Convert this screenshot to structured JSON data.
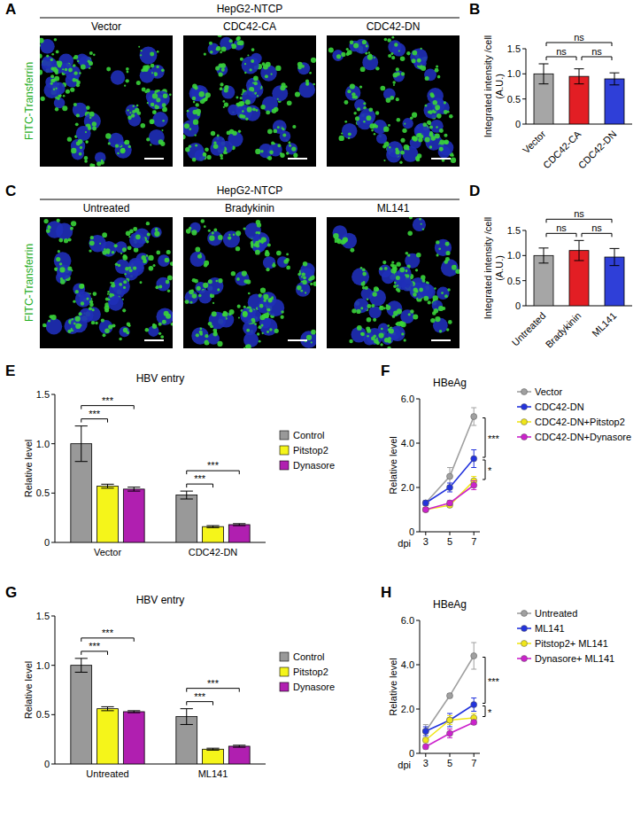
{
  "image_panels": [
    {
      "panel": "A",
      "header": "HepG2-NTCP",
      "channel": "FITC-Transferrin",
      "images": [
        "Vector",
        "CDC42-CA",
        "CDC42-DN"
      ]
    },
    {
      "panel": "C",
      "header": "HepG2-NTCP",
      "channel": "FITC-Transferrin",
      "images": [
        "Untreated",
        "Bradykinin",
        "ML141"
      ]
    }
  ],
  "chart_data": [
    {
      "panel": "B",
      "type": "bar",
      "categories": [
        "Vector",
        "CDC42-CA",
        "CDC42-DN"
      ],
      "values": [
        1.0,
        0.95,
        0.9
      ],
      "errors": [
        0.2,
        0.15,
        0.12
      ],
      "colors": [
        "#a6a6a6",
        "#e31e24",
        "#2f3fd8"
      ],
      "y_label": "Integrated intensity /cell (A.U.)",
      "ylim": [
        0,
        1.5
      ],
      "yticks": [
        0,
        0.5,
        {
          "value": 1,
          "label": "1.0"
        },
        1.5
      ],
      "annotations": [
        {
          "text": "ns",
          "from": 0,
          "to": 2
        },
        {
          "text": "ns",
          "from": 0,
          "to": 1
        },
        {
          "text": "ns",
          "from": 1,
          "to": 2
        }
      ]
    },
    {
      "panel": "D",
      "type": "bar",
      "categories": [
        "Untreated",
        "Bradykinin",
        "ML141"
      ],
      "values": [
        1.0,
        1.1,
        0.97
      ],
      "errors": [
        0.15,
        0.2,
        0.17
      ],
      "colors": [
        "#a6a6a6",
        "#e31e24",
        "#2f3fd8"
      ],
      "y_label": "Integrated intensity /cell (A.U.)",
      "ylim": [
        0,
        1.5
      ],
      "yticks": [
        0,
        0.5,
        {
          "value": 1,
          "label": "1.0"
        },
        1.5
      ],
      "annotations": [
        {
          "text": "ns",
          "from": 0,
          "to": 2
        },
        {
          "text": "ns",
          "from": 0,
          "to": 1
        },
        {
          "text": "ns",
          "from": 1,
          "to": 2
        }
      ]
    },
    {
      "panel": "E",
      "type": "bar",
      "title": "HBV entry",
      "categories": [
        "Vector",
        "CDC42-DN"
      ],
      "series": [
        {
          "name": "Control",
          "color": "#999999",
          "values": [
            1.0,
            0.48
          ],
          "errors": [
            0.18,
            0.04
          ]
        },
        {
          "name": "Pitstop2",
          "color": "#f5f51a",
          "values": [
            0.57,
            0.16
          ],
          "errors": [
            0.02,
            0.01
          ]
        },
        {
          "name": "Dynasore",
          "color": "#b01fb0",
          "values": [
            0.54,
            0.18
          ],
          "errors": [
            0.02,
            0.01
          ]
        }
      ],
      "y_label": "Relative level",
      "ylim": [
        0,
        1.5
      ],
      "yticks": [
        0,
        0.5,
        {
          "value": 1,
          "label": "1.0"
        },
        1.5
      ],
      "legend": "right",
      "annotations": [
        {
          "text": "***",
          "category": 0,
          "from": 0,
          "to": 1
        },
        {
          "text": "***",
          "category": 0,
          "from": 0,
          "to": 2
        },
        {
          "text": "***",
          "category": 1,
          "from": 0,
          "to": 1
        },
        {
          "text": "***",
          "category": 1,
          "from": 0,
          "to": 2
        }
      ]
    },
    {
      "panel": "F",
      "type": "line",
      "title": "HBeAg",
      "x": [
        3,
        5,
        7
      ],
      "xlim": [
        2.5,
        7.5
      ],
      "xticks": [
        3,
        5,
        7
      ],
      "x_label": "dpi",
      "y_label": "Relative level",
      "ylim": [
        0,
        6
      ],
      "yticks": [
        0,
        {
          "value": 2,
          "label": "2.0"
        },
        {
          "value": 4,
          "label": "4.0"
        },
        {
          "value": 6,
          "label": "6.0"
        }
      ],
      "marker": "circle",
      "legend": "right",
      "series": [
        {
          "name": "Vector",
          "color": "#a0a0a0",
          "values": [
            1.3,
            2.5,
            5.2
          ],
          "errors": [
            0.1,
            0.4,
            0.4
          ]
        },
        {
          "name": "CDC42-DN",
          "color": "#2233dd",
          "values": [
            1.3,
            2.0,
            3.3
          ],
          "errors": [
            0.1,
            0.2,
            0.4
          ]
        },
        {
          "name": "CDC42-DN+Pitstop2",
          "color": "#f0e61a",
          "values": [
            1.0,
            1.2,
            2.3
          ],
          "errors": [
            0.1,
            0.1,
            0.2
          ]
        },
        {
          "name": "CDC42-DN+Dynasore",
          "color": "#cc22cc",
          "values": [
            1.0,
            1.3,
            2.1
          ],
          "errors": [
            0.1,
            0.1,
            0.2
          ]
        }
      ],
      "annotations": [
        {
          "text": "***",
          "x": 7,
          "from": 0,
          "to": 1
        },
        {
          "text": "*",
          "x": 7,
          "from": 1,
          "to": 2
        }
      ]
    },
    {
      "panel": "G",
      "type": "bar",
      "categories": [
        "Untreated",
        "ML141"
      ],
      "series": [
        {
          "name": "Control",
          "color": "#999999",
          "values": [
            1.0,
            0.48
          ],
          "errors": [
            0.07,
            0.08
          ]
        },
        {
          "name": "Pitstop2",
          "color": "#f5f51a",
          "values": [
            0.56,
            0.15
          ],
          "errors": [
            0.02,
            0.01
          ]
        },
        {
          "name": "Dynasore",
          "color": "#b01fb0",
          "values": [
            0.53,
            0.18
          ],
          "errors": [
            0.01,
            0.01
          ]
        }
      ],
      "title": "HBV entry",
      "y_label": "Relative level",
      "ylim": [
        0,
        1.5
      ],
      "yticks": [
        0,
        0.5,
        {
          "value": 1,
          "label": "1.0"
        },
        1.5
      ],
      "legend": "right",
      "annotations": [
        {
          "text": "***",
          "category": 0,
          "from": 0,
          "to": 1
        },
        {
          "text": "***",
          "category": 0,
          "from": 0,
          "to": 2
        },
        {
          "text": "***",
          "category": 1,
          "from": 0,
          "to": 1
        },
        {
          "text": "***",
          "category": 1,
          "from": 0,
          "to": 2
        }
      ]
    },
    {
      "panel": "H",
      "type": "line",
      "title": "HBeAg",
      "x": [
        3,
        5,
        7
      ],
      "xlim": [
        2.5,
        7.5
      ],
      "xticks": [
        3,
        5,
        7
      ],
      "x_label": "dpi",
      "y_label": "Relative level",
      "ylim": [
        0,
        6
      ],
      "yticks": [
        0,
        {
          "value": 2,
          "label": "2.0"
        },
        {
          "value": 4,
          "label": "4.0"
        },
        {
          "value": 6,
          "label": "6.0"
        }
      ],
      "marker": "circle",
      "legend": "right",
      "series": [
        {
          "name": "Untreated",
          "color": "#a0a0a0",
          "values": [
            1.0,
            2.6,
            4.4
          ],
          "errors": [
            0.3,
            0.1,
            0.6
          ]
        },
        {
          "name": "ML141",
          "color": "#2233dd",
          "values": [
            1.0,
            1.5,
            2.2
          ],
          "errors": [
            0.2,
            0.3,
            0.3
          ]
        },
        {
          "name": "Pitstop2+ ML141",
          "color": "#f0e61a",
          "values": [
            0.6,
            1.5,
            1.6
          ],
          "errors": [
            0.1,
            0.2,
            0.2
          ]
        },
        {
          "name": "Dynasore+ ML141",
          "color": "#cc22cc",
          "values": [
            0.3,
            0.9,
            1.4
          ],
          "errors": [
            0.1,
            0.2,
            0.1
          ]
        }
      ],
      "annotations": [
        {
          "text": "***",
          "x": 7,
          "from": 0,
          "to": 1
        },
        {
          "text": "*",
          "x": 7,
          "from": 1,
          "to": 2
        }
      ]
    }
  ]
}
